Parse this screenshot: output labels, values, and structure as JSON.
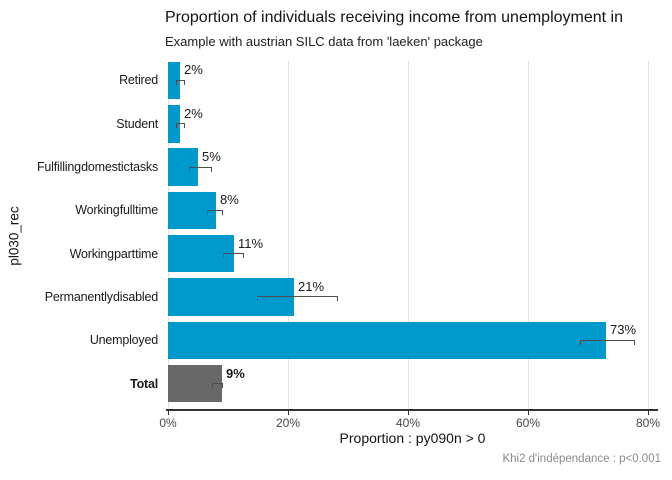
{
  "chart_data": {
    "type": "bar",
    "orientation": "horizontal",
    "title": "Proportion of individuals receiving income from unemployment in",
    "subtitle": "Example with austrian SILC data from 'laeken' package",
    "xlabel": "Proportion : py090n > 0",
    "ylabel": "pl030_rec",
    "caption": "Khi2 d'indépendance : p<0.001",
    "categories": [
      "Retired",
      "Student",
      "Fulfilling domestic tasks",
      "Working full time",
      "Working part time",
      "Permanently disabled",
      "Unemployed",
      "Total"
    ],
    "values": [
      2,
      2,
      5,
      8,
      11,
      21,
      73,
      9
    ],
    "value_labels": [
      "2%",
      "2%",
      "5%",
      "8%",
      "11%",
      "21%",
      "73%",
      "9%"
    ],
    "ci_low": [
      1.4,
      1.4,
      3.5,
      6.5,
      9.2,
      14.8,
      68.7,
      7.3
    ],
    "ci_high": [
      2.9,
      2.9,
      7.3,
      9.2,
      12.7,
      28.3,
      77.8,
      9.2
    ],
    "total_row_index": 7,
    "xlim": [
      0,
      81.5
    ],
    "x_ticks": [
      {
        "value": 0,
        "label": "0%"
      },
      {
        "value": 20,
        "label": "20%"
      },
      {
        "value": 40,
        "label": "40%"
      },
      {
        "value": 60,
        "label": "60%"
      },
      {
        "value": 80,
        "label": "80%"
      }
    ],
    "grid": "vertical major gridlines only",
    "legend": "none",
    "colors": {
      "bar": "#0099CB",
      "total_bar": "#686868",
      "grid": "#E2E2E2",
      "axis": "#333333",
      "error_bar": "#4D4D4D",
      "text": "#1A1A1A",
      "caption": "#8A8A8A"
    }
  }
}
